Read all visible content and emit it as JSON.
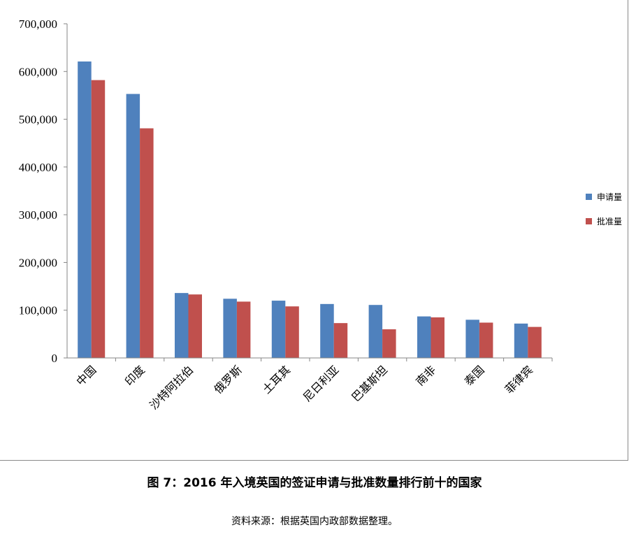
{
  "colors": {
    "series1": "#4f81bd",
    "series2": "#c0504d",
    "axis": "#868686"
  },
  "chart_data": {
    "type": "bar",
    "categories": [
      "中国",
      "印度",
      "沙特阿拉伯",
      "俄罗斯",
      "土耳其",
      "尼日利亚",
      "巴基斯坦",
      "南非",
      "泰国",
      "菲律宾"
    ],
    "series": [
      {
        "name": "申请量",
        "values": [
          621000,
          553000,
          136000,
          124000,
          120000,
          113000,
          111000,
          87000,
          80000,
          72000
        ]
      },
      {
        "name": "批准量",
        "values": [
          582000,
          481000,
          133000,
          118000,
          108000,
          73000,
          60000,
          85000,
          74000,
          65000
        ]
      }
    ],
    "ylim": [
      0,
      700000
    ],
    "yticks": [
      "0",
      "100,000",
      "200,000",
      "300,000",
      "400,000",
      "500,000",
      "600,000",
      "700,000"
    ],
    "grid": false,
    "legend_position": "right",
    "title": "",
    "xlabel": "",
    "ylabel": ""
  },
  "caption": "图  7：2016 年入境英国的签证申请与批准数量排行前十的国家",
  "source": "资料来源：根据英国内政部数据整理。"
}
